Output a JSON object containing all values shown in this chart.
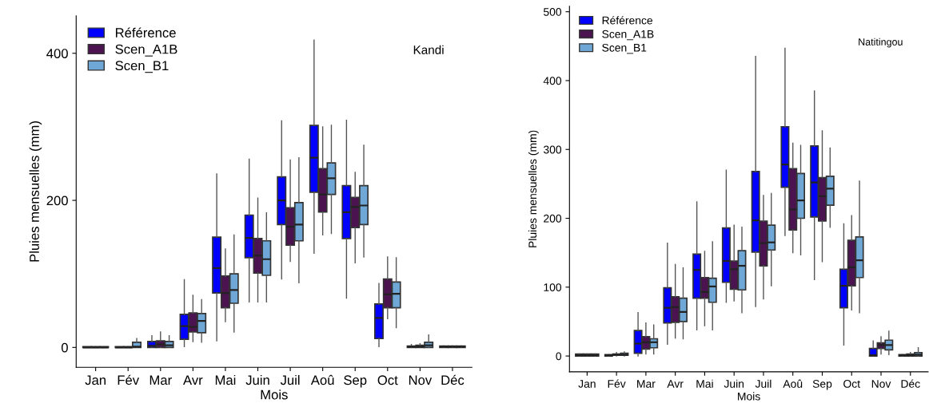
{
  "chart_data": [
    {
      "type": "box",
      "title": "Kandi",
      "xlabel": "Mois",
      "ylabel": "Pluies mensuelles (mm)",
      "categories": [
        "Jan",
        "Fév",
        "Mar",
        "Avr",
        "Mai",
        "Juin",
        "Juil",
        "Aoû",
        "Sep",
        "Oct",
        "Nov",
        "Déc"
      ],
      "ylim": [
        -27,
        451
      ],
      "yticks": [
        0,
        200,
        400
      ],
      "grid": false,
      "legend": "top left",
      "series": [
        {
          "name": "Référence",
          "color": "#0000ff",
          "boxes": [
            {
              "low": 0,
              "q1": 0,
              "median": 0,
              "q3": 1,
              "high": 1
            },
            {
              "low": 0,
              "q1": 0,
              "median": 0,
              "q3": 1,
              "high": 1
            },
            {
              "low": 0,
              "q1": 0,
              "median": 2,
              "q3": 8,
              "high": 16
            },
            {
              "low": 1,
              "q1": 11,
              "median": 29,
              "q3": 45,
              "high": 92
            },
            {
              "low": 9,
              "q1": 74,
              "median": 108,
              "q3": 150,
              "high": 236
            },
            {
              "low": 62,
              "q1": 122,
              "median": 149,
              "q3": 180,
              "high": 256
            },
            {
              "low": 93,
              "q1": 167,
              "median": 200,
              "q3": 232,
              "high": 308
            },
            {
              "low": 128,
              "q1": 211,
              "median": 258,
              "q3": 302,
              "high": 418
            },
            {
              "low": 67,
              "q1": 148,
              "median": 184,
              "q3": 220,
              "high": 309
            },
            {
              "low": 1,
              "q1": 12,
              "median": 40,
              "q3": 59,
              "high": 87
            },
            {
              "low": 0,
              "q1": 0,
              "median": 1,
              "q3": 2,
              "high": 4
            },
            {
              "low": 0,
              "q1": 0,
              "median": 1,
              "q3": 2,
              "high": 2
            }
          ]
        },
        {
          "name": "Scen_A1B",
          "color": "#4b1450",
          "boxes": [
            {
              "low": 0,
              "q1": 0,
              "median": 0,
              "q3": 1,
              "high": 1
            },
            {
              "low": 0,
              "q1": 0,
              "median": 0,
              "q3": 1,
              "high": 1
            },
            {
              "low": 0,
              "q1": 0,
              "median": 4,
              "q3": 9,
              "high": 21
            },
            {
              "low": 8,
              "q1": 21,
              "median": 28,
              "q3": 47,
              "high": 71
            },
            {
              "low": 35,
              "q1": 54,
              "median": 74,
              "q3": 97,
              "high": 134
            },
            {
              "low": 62,
              "q1": 101,
              "median": 125,
              "q3": 148,
              "high": 203
            },
            {
              "low": 117,
              "q1": 139,
              "median": 164,
              "q3": 190,
              "high": 255
            },
            {
              "low": 153,
              "q1": 184,
              "median": 208,
              "q3": 243,
              "high": 300
            },
            {
              "low": 115,
              "q1": 163,
              "median": 191,
              "q3": 204,
              "high": 238
            },
            {
              "low": 39,
              "q1": 54,
              "median": 72,
              "q3": 93,
              "high": 123
            },
            {
              "low": 0,
              "q1": 0,
              "median": 1,
              "q3": 3,
              "high": 5
            },
            {
              "low": 0,
              "q1": 0,
              "median": 1,
              "q3": 2,
              "high": 2
            }
          ]
        },
        {
          "name": "Scen_B1",
          "color": "#6fa8d6",
          "boxes": [
            {
              "low": 0,
              "q1": 0,
              "median": 0,
              "q3": 1,
              "high": 1
            },
            {
              "low": 0,
              "q1": 0,
              "median": 1,
              "q3": 7,
              "high": 12
            },
            {
              "low": 0,
              "q1": 0,
              "median": 3,
              "q3": 8,
              "high": 16
            },
            {
              "low": 7,
              "q1": 20,
              "median": 36,
              "q3": 46,
              "high": 65
            },
            {
              "low": 21,
              "q1": 60,
              "median": 78,
              "q3": 100,
              "high": 153
            },
            {
              "low": 62,
              "q1": 98,
              "median": 120,
              "q3": 145,
              "high": 183
            },
            {
              "low": 88,
              "q1": 145,
              "median": 167,
              "q3": 197,
              "high": 258
            },
            {
              "low": 155,
              "q1": 208,
              "median": 230,
              "q3": 251,
              "high": 302
            },
            {
              "low": 123,
              "q1": 167,
              "median": 193,
              "q3": 220,
              "high": 275
            },
            {
              "low": 27,
              "q1": 54,
              "median": 73,
              "q3": 89,
              "high": 122
            },
            {
              "low": 0,
              "q1": 0,
              "median": 3,
              "q3": 7,
              "high": 17
            },
            {
              "low": 0,
              "q1": 0,
              "median": 1,
              "q3": 2,
              "high": 2
            }
          ]
        }
      ]
    },
    {
      "type": "box",
      "title": "Natitingou",
      "xlabel": "Mois",
      "ylabel": "Pluies mensuelles (mm)",
      "categories": [
        "Jan",
        "Fév",
        "Mar",
        "Avr",
        "Mai",
        "Juin",
        "Juil",
        "Aoû",
        "Sep",
        "Oct",
        "Nov",
        "Déc"
      ],
      "ylim": [
        -23,
        508
      ],
      "yticks": [
        0,
        100,
        200,
        300,
        400,
        500
      ],
      "grid": false,
      "legend": "top left",
      "series": [
        {
          "name": "Référence",
          "color": "#0000ff",
          "boxes": [
            {
              "low": 0,
              "q1": 0,
              "median": 1,
              "q3": 3,
              "high": 3
            },
            {
              "low": 0,
              "q1": 0,
              "median": 1,
              "q3": 2,
              "high": 2
            },
            {
              "low": 0,
              "q1": 4,
              "median": 18,
              "q3": 37,
              "high": 63
            },
            {
              "low": 17,
              "q1": 48,
              "median": 70,
              "q3": 99,
              "high": 164
            },
            {
              "low": 38,
              "q1": 84,
              "median": 125,
              "q3": 148,
              "high": 224
            },
            {
              "low": 78,
              "q1": 107,
              "median": 138,
              "q3": 186,
              "high": 270
            },
            {
              "low": 72,
              "q1": 151,
              "median": 197,
              "q3": 268,
              "high": 435
            },
            {
              "low": 175,
              "q1": 245,
              "median": 278,
              "q3": 333,
              "high": 447
            },
            {
              "low": 111,
              "q1": 202,
              "median": 252,
              "q3": 305,
              "high": 385
            },
            {
              "low": 16,
              "q1": 70,
              "median": 102,
              "q3": 126,
              "high": 192
            },
            {
              "low": 0,
              "q1": 0,
              "median": 1,
              "q3": 11,
              "high": 22
            },
            {
              "low": 0,
              "q1": 0,
              "median": 1,
              "q3": 2,
              "high": 2
            }
          ]
        },
        {
          "name": "Scen_A1B",
          "color": "#4b1450",
          "boxes": [
            {
              "low": 0,
              "q1": 0,
              "median": 1,
              "q3": 3,
              "high": 3
            },
            {
              "low": 0,
              "q1": 1,
              "median": 2,
              "q3": 3,
              "high": 5
            },
            {
              "low": 3,
              "q1": 10,
              "median": 20,
              "q3": 28,
              "high": 48
            },
            {
              "low": 26,
              "q1": 49,
              "median": 71,
              "q3": 86,
              "high": 133
            },
            {
              "low": 44,
              "q1": 84,
              "median": 93,
              "q3": 114,
              "high": 152
            },
            {
              "low": 80,
              "q1": 97,
              "median": 126,
              "q3": 138,
              "high": 190
            },
            {
              "low": 83,
              "q1": 131,
              "median": 164,
              "q3": 196,
              "high": 233
            },
            {
              "low": 150,
              "q1": 183,
              "median": 213,
              "q3": 272,
              "high": 309
            },
            {
              "low": 137,
              "q1": 196,
              "median": 232,
              "q3": 259,
              "high": 327
            },
            {
              "low": 67,
              "q1": 102,
              "median": 129,
              "q3": 168,
              "high": 204
            },
            {
              "low": 3,
              "q1": 11,
              "median": 16,
              "q3": 19,
              "high": 28
            },
            {
              "low": 0,
              "q1": 0,
              "median": 1,
              "q3": 3,
              "high": 5
            }
          ]
        },
        {
          "name": "Scen_B1",
          "color": "#6fa8d6",
          "boxes": [
            {
              "low": 0,
              "q1": 0,
              "median": 1,
              "q3": 3,
              "high": 3
            },
            {
              "low": 0,
              "q1": 1,
              "median": 2,
              "q3": 4,
              "high": 6
            },
            {
              "low": 3,
              "q1": 12,
              "median": 20,
              "q3": 25,
              "high": 45
            },
            {
              "low": 25,
              "q1": 50,
              "median": 64,
              "q3": 84,
              "high": 128
            },
            {
              "low": 38,
              "q1": 78,
              "median": 101,
              "q3": 113,
              "high": 166
            },
            {
              "low": 63,
              "q1": 96,
              "median": 131,
              "q3": 153,
              "high": 187
            },
            {
              "low": 102,
              "q1": 154,
              "median": 165,
              "q3": 190,
              "high": 236
            },
            {
              "low": 147,
              "q1": 200,
              "median": 226,
              "q3": 265,
              "high": 306
            },
            {
              "low": 187,
              "q1": 219,
              "median": 243,
              "q3": 261,
              "high": 302
            },
            {
              "low": 63,
              "q1": 114,
              "median": 139,
              "q3": 173,
              "high": 254
            },
            {
              "low": 2,
              "q1": 9,
              "median": 16,
              "q3": 23,
              "high": 36
            },
            {
              "low": 0,
              "q1": 0,
              "median": 2,
              "q3": 5,
              "high": 12
            }
          ]
        }
      ]
    }
  ]
}
